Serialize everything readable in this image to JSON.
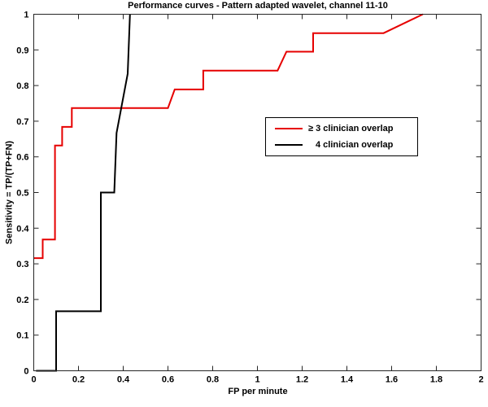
{
  "figure": {
    "background": "#ffffff",
    "axis_color": "#262626"
  },
  "chart_data": {
    "type": "line",
    "subtype": "roc-step-curves",
    "title": "Performance curves - Pattern adapted wavelet, channel 11-10",
    "xlabel": "FP per minute",
    "ylabel": "Sensitivity = TP/(TP+FN)",
    "xlim": [
      0,
      2
    ],
    "ylim": [
      0,
      1
    ],
    "x_ticks": [
      "0",
      "0.2",
      "0.4",
      "0.6",
      "0.8",
      "1",
      "1.2",
      "1.4",
      "1.6",
      "1.8",
      "2"
    ],
    "y_ticks": [
      "0",
      "0.1",
      "0.2",
      "0.3",
      "0.4",
      "0.5",
      "0.6",
      "0.7",
      "0.8",
      "0.9",
      "1"
    ],
    "grid": false,
    "box": true,
    "tick_style": "inward-mirrored",
    "legend": {
      "position": "middle-right",
      "border": true
    },
    "series": [
      {
        "name": "≥ 3 clinician overlap",
        "color": "#e60000",
        "line_width": 2,
        "points": [
          [
            0,
            0.316
          ],
          [
            0.04,
            0.316
          ],
          [
            0.04,
            0.368
          ],
          [
            0.095,
            0.368
          ],
          [
            0.095,
            0.632
          ],
          [
            0.127,
            0.632
          ],
          [
            0.127,
            0.684
          ],
          [
            0.17,
            0.684
          ],
          [
            0.17,
            0.737
          ],
          [
            0.6,
            0.737
          ],
          [
            0.63,
            0.789
          ],
          [
            0.758,
            0.789
          ],
          [
            0.758,
            0.842
          ],
          [
            1.09,
            0.842
          ],
          [
            1.13,
            0.895
          ],
          [
            1.249,
            0.895
          ],
          [
            1.249,
            0.947
          ],
          [
            1.564,
            0.947
          ],
          [
            1.74,
            1.0
          ]
        ]
      },
      {
        "name": "4 clinician overlap",
        "color": "#000000",
        "line_width": 2,
        "points": [
          [
            0.01,
            0
          ],
          [
            0.1,
            0
          ],
          [
            0.1,
            0.167
          ],
          [
            0.3,
            0.167
          ],
          [
            0.3,
            0.5
          ],
          [
            0.36,
            0.5
          ],
          [
            0.37,
            0.667
          ],
          [
            0.42,
            0.833
          ],
          [
            0.43,
            1.0
          ]
        ]
      }
    ]
  }
}
